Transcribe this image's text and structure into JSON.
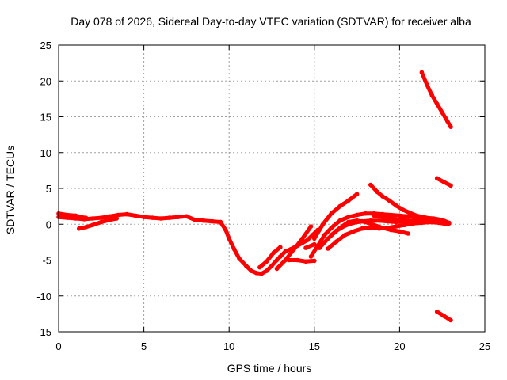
{
  "chart_data": {
    "type": "scatter",
    "title": "Day 078 of 2026, Sidereal Day-to-day VTEC variation (SDTVAR) for receiver alba",
    "xlabel": "GPS time / hours",
    "ylabel": "SDTVAR / TECUs",
    "xlim": [
      0,
      25
    ],
    "ylim": [
      -15,
      25
    ],
    "xticks": [
      0,
      5,
      10,
      15,
      20,
      25
    ],
    "yticks": [
      -15,
      -10,
      -5,
      0,
      5,
      10,
      15,
      20,
      25
    ],
    "xtick_labels": [
      "0",
      "5",
      "10",
      "15",
      "20",
      "25"
    ],
    "ytick_labels": [
      "-15",
      "-10",
      "-5",
      "0",
      "5",
      "10",
      "15",
      "20",
      "25"
    ],
    "grid": true,
    "marker_color": "#ff0000",
    "series": [
      {
        "name": "track-main",
        "x": [
          0,
          0.5,
          1,
          1.5,
          2,
          2.5,
          3,
          3.5,
          4,
          4.5,
          5,
          5.5,
          6,
          6.5,
          7,
          7.5,
          8,
          8.5,
          9,
          9.5
        ],
        "y": [
          1.0,
          0.9,
          0.8,
          0.7,
          0.8,
          0.9,
          1.1,
          1.3,
          1.4,
          1.2,
          1.0,
          0.9,
          0.8,
          0.9,
          1.0,
          1.1,
          0.6,
          0.5,
          0.4,
          0.3
        ]
      },
      {
        "name": "track-early-b",
        "x": [
          0,
          0.5,
          1,
          1.3,
          1.6
        ],
        "y": [
          1.5,
          1.3,
          1.2,
          1.0,
          0.9
        ]
      },
      {
        "name": "track-early-c",
        "x": [
          1.2,
          1.6,
          2.0,
          2.5,
          3.0,
          3.4
        ],
        "y": [
          -0.6,
          -0.4,
          -0.1,
          0.3,
          0.6,
          0.8
        ]
      },
      {
        "name": "track-depression",
        "x": [
          9.5,
          9.8,
          10.0,
          10.3,
          10.6,
          11.0,
          11.3,
          11.6,
          11.9,
          12.2,
          12.5,
          12.8,
          13.0,
          13.3,
          13.6,
          14.0,
          14.3,
          14.6,
          14.9,
          15.2
        ],
        "y": [
          0.3,
          -0.8,
          -2.0,
          -3.5,
          -4.8,
          -5.8,
          -6.5,
          -6.8,
          -6.9,
          -6.5,
          -5.8,
          -5.0,
          -4.5,
          -3.8,
          -3.5,
          -3.0,
          -2.6,
          -2.2,
          -1.5,
          -0.8
        ]
      },
      {
        "name": "track-mid-a",
        "x": [
          11.8,
          12.2,
          12.6,
          13.0
        ],
        "y": [
          -6.0,
          -5.2,
          -4.0,
          -3.2
        ]
      },
      {
        "name": "track-mid-b",
        "x": [
          12.8,
          13.3,
          13.8,
          14.3,
          14.8
        ],
        "y": [
          -6.2,
          -5.0,
          -3.5,
          -2.0,
          -0.3
        ]
      },
      {
        "name": "track-mid-c",
        "x": [
          13.5,
          14.0,
          14.5,
          15.0
        ],
        "y": [
          -5.0,
          -5.0,
          -5.2,
          -5.1
        ]
      },
      {
        "name": "track-mid-d",
        "x": [
          14.5,
          15.0
        ],
        "y": [
          -3.3,
          -2.8
        ]
      },
      {
        "name": "track-rise-a",
        "x": [
          14.8,
          15.2,
          15.6,
          16.0,
          16.5,
          17.0,
          17.5,
          18.0,
          18.5,
          19.0,
          19.5,
          20.0,
          20.5,
          21.0,
          21.5,
          22.0,
          22.5,
          22.9
        ],
        "y": [
          -4.5,
          -3.0,
          -1.5,
          -0.5,
          0.5,
          1.0,
          1.3,
          1.5,
          1.5,
          1.4,
          1.3,
          1.2,
          1.1,
          1.0,
          0.9,
          0.8,
          0.6,
          0.2
        ]
      },
      {
        "name": "track-rise-b",
        "x": [
          15.0,
          15.5,
          16.0,
          16.5,
          17.0,
          17.5
        ],
        "y": [
          -2.0,
          0.0,
          1.5,
          2.5,
          3.3,
          4.2
        ]
      },
      {
        "name": "track-rise-c",
        "x": [
          15.3,
          15.8,
          16.3,
          16.8,
          17.3,
          17.8,
          18.3,
          18.8,
          19.3,
          19.8,
          20.3,
          20.8,
          21.3,
          21.8,
          22.3,
          22.8
        ],
        "y": [
          -3.3,
          -2.0,
          -0.9,
          -0.2,
          0.2,
          0.4,
          0.5,
          0.5,
          0.4,
          0.3,
          0.4,
          0.5,
          0.6,
          0.5,
          0.3,
          0.1
        ]
      },
      {
        "name": "track-rise-d",
        "x": [
          15.8,
          16.3,
          16.8,
          17.3,
          17.8,
          18.3,
          18.8,
          19.3,
          19.8,
          20.3,
          20.8,
          21.3,
          21.8,
          22.3,
          22.8
        ],
        "y": [
          -3.4,
          -2.4,
          -1.5,
          -1.0,
          -0.6,
          -0.5,
          -0.6,
          -0.5,
          -0.3,
          -0.1,
          0.1,
          0.2,
          0.3,
          0.2,
          0.0
        ]
      },
      {
        "name": "track-rise-e",
        "x": [
          16.0,
          16.5,
          17.0,
          17.5,
          18.0,
          18.5,
          19.0,
          19.5,
          20.0,
          20.5
        ],
        "y": [
          -1.5,
          -0.5,
          0.3,
          0.5,
          0.3,
          -0.1,
          -0.5,
          -0.8,
          -1.0,
          -1.3
        ]
      },
      {
        "name": "track-late-a",
        "x": [
          18.3,
          18.7,
          19.0,
          19.4,
          19.8,
          20.2,
          20.6,
          21.0,
          21.4,
          21.8,
          22.2,
          22.6,
          22.9
        ],
        "y": [
          5.5,
          4.5,
          3.9,
          3.3,
          2.6,
          2.0,
          1.6,
          1.2,
          1.0,
          0.8,
          0.6,
          0.4,
          0.1
        ]
      },
      {
        "name": "track-late-b",
        "x": [
          18.5,
          19.0,
          19.5,
          20.0,
          20.5,
          21.0,
          21.5,
          22.0,
          22.5,
          22.8
        ],
        "y": [
          1.2,
          1.0,
          0.8,
          0.6,
          0.5,
          0.5,
          0.4,
          0.3,
          0.2,
          0.1
        ]
      },
      {
        "name": "track-high",
        "x": [
          21.3,
          21.6,
          21.9,
          22.2,
          22.5,
          22.8,
          23.0
        ],
        "y": [
          21.2,
          19.5,
          18.0,
          16.8,
          15.6,
          14.4,
          13.6
        ]
      },
      {
        "name": "track-mid-right",
        "x": [
          22.2,
          22.6,
          23.0
        ],
        "y": [
          6.4,
          5.9,
          5.4
        ]
      },
      {
        "name": "track-low",
        "x": [
          22.2,
          22.6,
          23.0
        ],
        "y": [
          -12.2,
          -12.8,
          -13.4
        ]
      }
    ]
  }
}
